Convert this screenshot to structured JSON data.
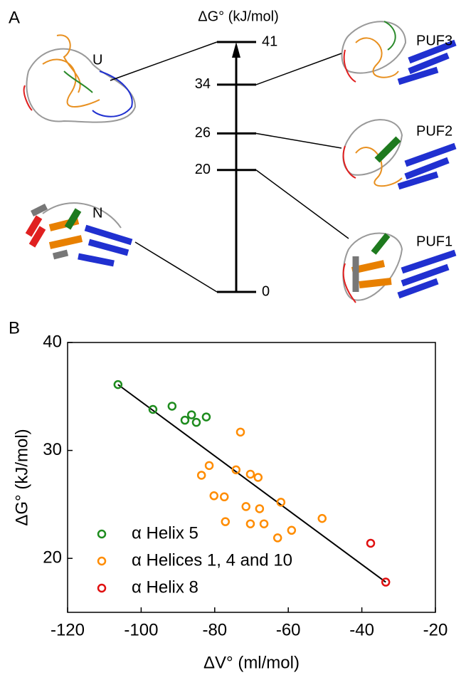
{
  "chart_data": [
    {
      "type": "energy-levels",
      "panel_label": "A",
      "axis_label": "ΔG° (kJ/mol)",
      "ylim": [
        0,
        41
      ],
      "levels": [
        {
          "value": 41,
          "state": "U"
        },
        {
          "value": 34,
          "state": "PUF3"
        },
        {
          "value": 26,
          "state": "PUF2"
        },
        {
          "value": 20,
          "state": "PUF1"
        },
        {
          "value": 0,
          "state": "N"
        }
      ]
    },
    {
      "type": "scatter",
      "panel_label": "B",
      "x_label": "ΔV° (ml/mol)",
      "y_label": "ΔG° (kJ/mol)",
      "xlim": [
        -120,
        -20
      ],
      "ylim": [
        15,
        40
      ],
      "xticks": [
        -120,
        -100,
        -80,
        -60,
        -40,
        -20
      ],
      "yticks": [
        20,
        30,
        40
      ],
      "legend": "lower left",
      "series": [
        {
          "name": "α Helix 5",
          "color": "#1e8c1e",
          "x": [
            -106.3,
            -96.8,
            -91.6,
            -86.3,
            -88.1,
            -85.0,
            -82.3
          ],
          "y": [
            36.1,
            33.8,
            34.1,
            33.3,
            32.8,
            32.6,
            33.1
          ]
        },
        {
          "name": "α Helices 1, 4 and 10",
          "color": "#ff8c00",
          "x": [
            -73.0,
            -81.5,
            -83.6,
            -74.2,
            -70.3,
            -68.2,
            -80.2,
            -77.4,
            -71.5,
            -67.8,
            -62.0,
            -77.1,
            -70.3,
            -66.6,
            -59.1,
            -62.9,
            -50.8
          ],
          "y": [
            31.7,
            28.6,
            27.7,
            28.2,
            27.8,
            27.5,
            25.8,
            25.7,
            24.8,
            24.6,
            25.2,
            23.4,
            23.2,
            23.2,
            22.6,
            21.9,
            23.7
          ]
        },
        {
          "name": "α Helix 8",
          "color": "#e01010",
          "x": [
            -37.6,
            -33.5
          ],
          "y": [
            21.4,
            17.8
          ]
        }
      ],
      "fit": {
        "color": "#000000",
        "x": [
          -106.3,
          -33.5
        ],
        "y": [
          36.1,
          17.8
        ]
      }
    }
  ]
}
